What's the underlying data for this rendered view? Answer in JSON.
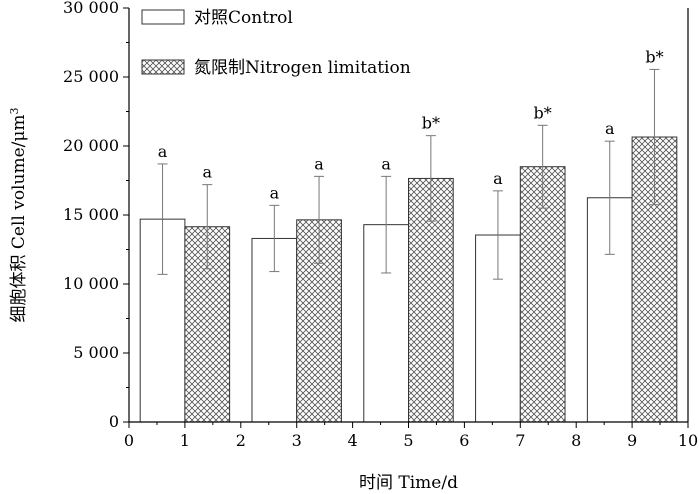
{
  "chart_data": {
    "type": "bar",
    "xlabel": "时间 Time/d",
    "ylabel": "细胞体积 Cell volume/μm³",
    "xlim": [
      0,
      10
    ],
    "ylim": [
      0,
      30000
    ],
    "x_ticks": [
      "0",
      "1",
      "2",
      "3",
      "4",
      "5",
      "6",
      "7",
      "8",
      "9",
      "10"
    ],
    "y_ticks": [
      "0",
      "5 000",
      "10 000",
      "15 000",
      "20 000",
      "25 000",
      "30 000"
    ],
    "x_tick_values": [
      0,
      1,
      2,
      3,
      4,
      5,
      6,
      7,
      8,
      9,
      10
    ],
    "y_tick_values": [
      0,
      5000,
      10000,
      15000,
      20000,
      25000,
      30000
    ],
    "categories": [
      "1",
      "3",
      "5",
      "7",
      "9"
    ],
    "series": [
      {
        "name": "对照Control",
        "style": "open",
        "x": [
          1,
          3,
          5,
          7,
          9
        ],
        "values": [
          14700,
          13300,
          14300,
          13550,
          16250
        ],
        "error": [
          4000,
          2400,
          3500,
          3200,
          4100
        ],
        "sig": [
          "a",
          "a",
          "a",
          "a",
          "a"
        ]
      },
      {
        "name": "氮限制Nitrogen limitation",
        "style": "crosshatch",
        "x": [
          1,
          3,
          5,
          7,
          9
        ],
        "values": [
          14150,
          14650,
          17650,
          18500,
          20650
        ],
        "error": [
          3050,
          3150,
          3100,
          3000,
          4900
        ],
        "sig": [
          "a",
          "a",
          "b*",
          "b*",
          "b*"
        ]
      }
    ],
    "legend_position": "top-left",
    "grid": false,
    "colors": {
      "axis": "#000000",
      "bar_edge": "#333333",
      "error_bar": "#777777",
      "hatch": "#555555",
      "fill": "#ffffff"
    }
  }
}
